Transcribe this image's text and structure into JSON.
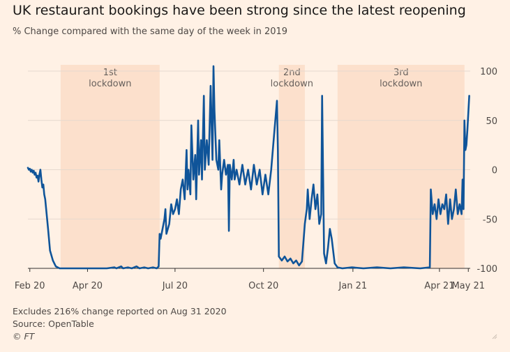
{
  "title": "UK restaurant bookings have been strong since the latest reopening",
  "subtitle": "% Change compared with the same day of the week in 2019",
  "footer": {
    "note": "Excludes 216% change reported on Aug 31 2020",
    "source": "Source: OpenTable",
    "copyright": "© FT"
  },
  "colors": {
    "background": "#fff1e5",
    "line": "#0f5499",
    "lockdown_band": "#fce0cc",
    "gridline": "#e6d9ce",
    "text": "#33302e"
  },
  "chart_data": {
    "type": "line",
    "title": "UK restaurant bookings have been strong since the latest reopening",
    "subtitle": "% Change compared with the same day of the week in 2019",
    "xlabel": "",
    "ylabel": "",
    "x_start": "2020-02-18",
    "x_end": "2021-05-23",
    "ylim": [
      -100,
      100
    ],
    "y_ticks": [
      100,
      50,
      0,
      -50,
      -100
    ],
    "y_tick_labels": [
      "100",
      "50",
      "0",
      "-50",
      "-100"
    ],
    "y_axis_side": "right",
    "x_ticks": [
      {
        "date": "2020-02-20",
        "label": "Feb 20"
      },
      {
        "date": "2020-04-20",
        "label": "Apr 20"
      },
      {
        "date": "2020-07-20",
        "label": "Jul 20"
      },
      {
        "date": "2020-10-20",
        "label": "Oct 20"
      },
      {
        "date": "2021-01-21",
        "label": "Jan 21"
      },
      {
        "date": "2021-04-21",
        "label": "Apr 21"
      },
      {
        "date": "2021-05-21",
        "label": "May 21"
      }
    ],
    "grid": true,
    "legend": "none",
    "shaded_periods": [
      {
        "label_line1": "1st",
        "label_line2": "lockdown",
        "start": "2020-03-23",
        "end": "2020-07-04"
      },
      {
        "label_line1": "2nd",
        "label_line2": "lockdown",
        "start": "2020-11-05",
        "end": "2020-12-02"
      },
      {
        "label_line1": "3rd",
        "label_line2": "lockdown",
        "start": "2021-01-05",
        "end": "2021-05-17"
      }
    ],
    "series": [
      {
        "points": [
          [
            "2020-02-18",
            2
          ],
          [
            "2020-02-19",
            0
          ],
          [
            "2020-02-20",
            1
          ],
          [
            "2020-02-21",
            -2
          ],
          [
            "2020-02-22",
            0
          ],
          [
            "2020-02-23",
            -3
          ],
          [
            "2020-02-24",
            -1
          ],
          [
            "2020-02-25",
            -5
          ],
          [
            "2020-02-26",
            -3
          ],
          [
            "2020-02-27",
            -8
          ],
          [
            "2020-02-28",
            -6
          ],
          [
            "2020-02-29",
            -12
          ],
          [
            "2020-03-01",
            -5
          ],
          [
            "2020-03-02",
            0
          ],
          [
            "2020-03-03",
            -10
          ],
          [
            "2020-03-04",
            -18
          ],
          [
            "2020-03-05",
            -15
          ],
          [
            "2020-03-06",
            -25
          ],
          [
            "2020-03-07",
            -30
          ],
          [
            "2020-03-10",
            -60
          ],
          [
            "2020-03-12",
            -82
          ],
          [
            "2020-03-15",
            -92
          ],
          [
            "2020-03-18",
            -98
          ],
          [
            "2020-03-22",
            -100
          ],
          [
            "2020-04-20",
            -100
          ],
          [
            "2020-05-10",
            -100
          ],
          [
            "2020-05-18",
            -99
          ],
          [
            "2020-05-20",
            -100
          ],
          [
            "2020-05-25",
            -98
          ],
          [
            "2020-05-27",
            -100
          ],
          [
            "2020-06-01",
            -99
          ],
          [
            "2020-06-05",
            -100
          ],
          [
            "2020-06-10",
            -98
          ],
          [
            "2020-06-13",
            -100
          ],
          [
            "2020-06-18",
            -99
          ],
          [
            "2020-06-22",
            -100
          ],
          [
            "2020-06-27",
            -99
          ],
          [
            "2020-07-01",
            -100
          ],
          [
            "2020-07-03",
            -98
          ],
          [
            "2020-07-04",
            -65
          ],
          [
            "2020-07-05",
            -70
          ],
          [
            "2020-07-07",
            -60
          ],
          [
            "2020-07-09",
            -50
          ],
          [
            "2020-07-10",
            -40
          ],
          [
            "2020-07-11",
            -65
          ],
          [
            "2020-07-14",
            -55
          ],
          [
            "2020-07-16",
            -35
          ],
          [
            "2020-07-18",
            -45
          ],
          [
            "2020-07-20",
            -40
          ],
          [
            "2020-07-22",
            -30
          ],
          [
            "2020-07-24",
            -45
          ],
          [
            "2020-07-26",
            -20
          ],
          [
            "2020-07-28",
            -10
          ],
          [
            "2020-07-30",
            -30
          ],
          [
            "2020-08-01",
            20
          ],
          [
            "2020-08-02",
            -20
          ],
          [
            "2020-08-03",
            0
          ],
          [
            "2020-08-05",
            -25
          ],
          [
            "2020-08-06",
            45
          ],
          [
            "2020-08-08",
            -10
          ],
          [
            "2020-08-10",
            15
          ],
          [
            "2020-08-11",
            -30
          ],
          [
            "2020-08-13",
            50
          ],
          [
            "2020-08-14",
            -5
          ],
          [
            "2020-08-16",
            30
          ],
          [
            "2020-08-17",
            -10
          ],
          [
            "2020-08-19",
            75
          ],
          [
            "2020-08-20",
            0
          ],
          [
            "2020-08-22",
            30
          ],
          [
            "2020-08-24",
            5
          ],
          [
            "2020-08-26",
            85
          ],
          [
            "2020-08-28",
            10
          ],
          [
            "2020-08-29",
            105
          ],
          [
            "2020-08-30",
            60
          ],
          [
            "2020-09-01",
            10
          ],
          [
            "2020-09-03",
            0
          ],
          [
            "2020-09-04",
            30
          ],
          [
            "2020-09-06",
            -20
          ],
          [
            "2020-09-07",
            -5
          ],
          [
            "2020-09-09",
            10
          ],
          [
            "2020-09-11",
            -5
          ],
          [
            "2020-09-13",
            5
          ],
          [
            "2020-09-14",
            -62
          ],
          [
            "2020-09-15",
            5
          ],
          [
            "2020-09-17",
            -10
          ],
          [
            "2020-09-19",
            10
          ],
          [
            "2020-09-20",
            -10
          ],
          [
            "2020-09-22",
            0
          ],
          [
            "2020-09-25",
            -15
          ],
          [
            "2020-09-28",
            5
          ],
          [
            "2020-10-01",
            -15
          ],
          [
            "2020-10-04",
            0
          ],
          [
            "2020-10-07",
            -20
          ],
          [
            "2020-10-10",
            5
          ],
          [
            "2020-10-13",
            -15
          ],
          [
            "2020-10-16",
            0
          ],
          [
            "2020-10-19",
            -25
          ],
          [
            "2020-10-22",
            -5
          ],
          [
            "2020-10-25",
            -25
          ],
          [
            "2020-10-28",
            0
          ],
          [
            "2020-10-31",
            35
          ],
          [
            "2020-11-03",
            70
          ],
          [
            "2020-11-04",
            20
          ],
          [
            "2020-11-05",
            -88
          ],
          [
            "2020-11-08",
            -92
          ],
          [
            "2020-11-11",
            -88
          ],
          [
            "2020-11-14",
            -93
          ],
          [
            "2020-11-17",
            -90
          ],
          [
            "2020-11-20",
            -95
          ],
          [
            "2020-11-23",
            -92
          ],
          [
            "2020-11-26",
            -97
          ],
          [
            "2020-11-29",
            -93
          ],
          [
            "2020-12-02",
            -55
          ],
          [
            "2020-12-04",
            -40
          ],
          [
            "2020-12-05",
            -20
          ],
          [
            "2020-12-07",
            -50
          ],
          [
            "2020-12-09",
            -30
          ],
          [
            "2020-12-11",
            -15
          ],
          [
            "2020-12-13",
            -40
          ],
          [
            "2020-12-15",
            -25
          ],
          [
            "2020-12-17",
            -55
          ],
          [
            "2020-12-19",
            -45
          ],
          [
            "2020-12-20",
            75
          ],
          [
            "2020-12-22",
            -85
          ],
          [
            "2020-12-24",
            -95
          ],
          [
            "2020-12-26",
            -80
          ],
          [
            "2020-12-28",
            -60
          ],
          [
            "2020-12-30",
            -70
          ],
          [
            "2021-01-02",
            -95
          ],
          [
            "2021-01-05",
            -99
          ],
          [
            "2021-01-10",
            -100
          ],
          [
            "2021-01-20",
            -99
          ],
          [
            "2021-02-01",
            -100
          ],
          [
            "2021-02-15",
            -99
          ],
          [
            "2021-03-01",
            -100
          ],
          [
            "2021-03-15",
            -99
          ],
          [
            "2021-04-01",
            -100
          ],
          [
            "2021-04-11",
            -99
          ],
          [
            "2021-04-12",
            -20
          ],
          [
            "2021-04-14",
            -45
          ],
          [
            "2021-04-16",
            -35
          ],
          [
            "2021-04-18",
            -50
          ],
          [
            "2021-04-20",
            -30
          ],
          [
            "2021-04-22",
            -45
          ],
          [
            "2021-04-24",
            -35
          ],
          [
            "2021-04-26",
            -40
          ],
          [
            "2021-04-28",
            -25
          ],
          [
            "2021-04-30",
            -55
          ],
          [
            "2021-05-02",
            -30
          ],
          [
            "2021-05-04",
            -50
          ],
          [
            "2021-05-06",
            -40
          ],
          [
            "2021-05-08",
            -20
          ],
          [
            "2021-05-10",
            -45
          ],
          [
            "2021-05-12",
            -35
          ],
          [
            "2021-05-14",
            -45
          ],
          [
            "2021-05-15",
            -10
          ],
          [
            "2021-05-16",
            -40
          ],
          [
            "2021-05-17",
            50
          ],
          [
            "2021-05-18",
            20
          ],
          [
            "2021-05-19",
            25
          ],
          [
            "2021-05-20",
            40
          ],
          [
            "2021-05-22",
            75
          ]
        ]
      }
    ]
  }
}
